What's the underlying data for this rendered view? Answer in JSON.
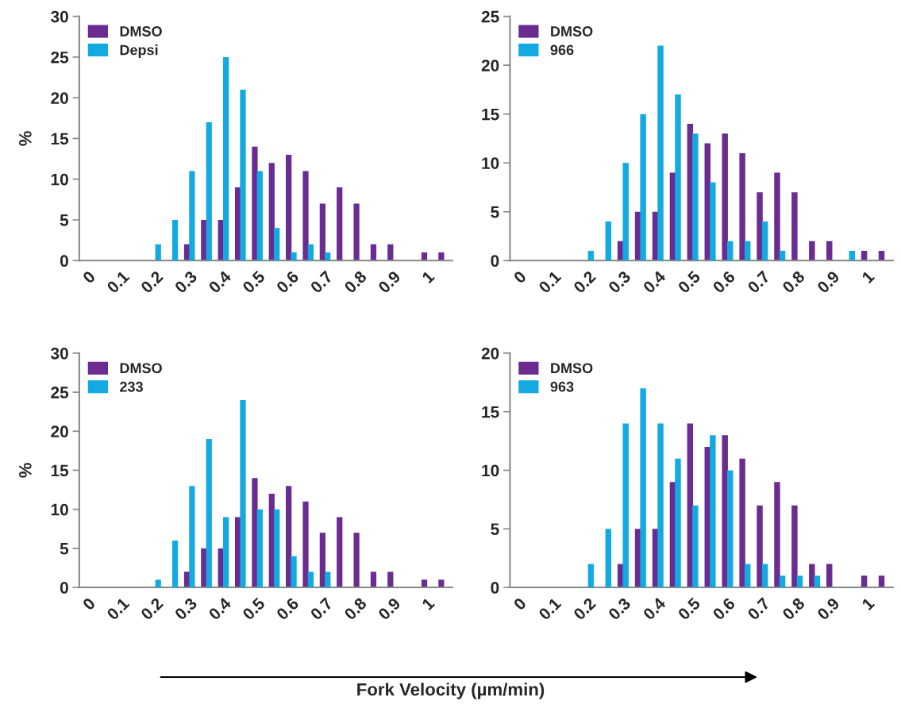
{
  "chart_data": [
    {
      "type": "bar",
      "ylabel": "%",
      "legend": "top left",
      "grid": false,
      "ylim": [
        0,
        30
      ],
      "yticks": [
        0,
        5,
        10,
        15,
        20,
        25,
        30
      ],
      "categories": [
        "0",
        null,
        "0.1",
        null,
        "0.2",
        null,
        "0.3",
        null,
        "0.4",
        null,
        "0.5",
        null,
        "0.6",
        null,
        "0.7",
        null,
        "0.8",
        null,
        "0.9",
        null,
        "1",
        null
      ],
      "series": [
        {
          "name": "DMSO",
          "color": "#6a2c91",
          "values": [
            0,
            0,
            0,
            0,
            0,
            0,
            2,
            5,
            5,
            9,
            14,
            12,
            13,
            11,
            7,
            9,
            7,
            2,
            2,
            0,
            1,
            1
          ]
        },
        {
          "name": "Depsi",
          "color": "#13aae2",
          "values": [
            0,
            0,
            0,
            0,
            2,
            5,
            11,
            17,
            25,
            21,
            11,
            4,
            1,
            2,
            1,
            0,
            0,
            0,
            0,
            0,
            0,
            0
          ]
        }
      ]
    },
    {
      "type": "bar",
      "legend": "top left",
      "grid": false,
      "ylim": [
        0,
        25
      ],
      "yticks": [
        0,
        5,
        10,
        15,
        20,
        25
      ],
      "categories": [
        "0",
        null,
        "0.1",
        null,
        "0.2",
        null,
        "0.3",
        null,
        "0.4",
        null,
        "0.5",
        null,
        "0.6",
        null,
        "0.7",
        null,
        "0.8",
        null,
        "0.9",
        null,
        "1",
        null
      ],
      "series": [
        {
          "name": "DMSO",
          "color": "#6a2c91",
          "values": [
            0,
            0,
            0,
            0,
            0,
            0,
            2,
            5,
            5,
            9,
            14,
            12,
            13,
            11,
            7,
            9,
            7,
            2,
            2,
            0,
            1,
            1
          ]
        },
        {
          "name": "966",
          "color": "#13aae2",
          "values": [
            0,
            0,
            0,
            0,
            1,
            4,
            10,
            15,
            22,
            17,
            13,
            8,
            2,
            2,
            4,
            1,
            0,
            0,
            0,
            1,
            0,
            0
          ]
        }
      ]
    },
    {
      "type": "bar",
      "ylabel": "%",
      "legend": "top left",
      "grid": false,
      "ylim": [
        0,
        30
      ],
      "yticks": [
        0,
        5,
        10,
        15,
        20,
        25,
        30
      ],
      "categories": [
        "0",
        null,
        "0.1",
        null,
        "0.2",
        null,
        "0.3",
        null,
        "0.4",
        null,
        "0.5",
        null,
        "0.6",
        null,
        "0.7",
        null,
        "0.8",
        null,
        "0.9",
        null,
        "1",
        null
      ],
      "series": [
        {
          "name": "DMSO",
          "color": "#6a2c91",
          "values": [
            0,
            0,
            0,
            0,
            0,
            0,
            2,
            5,
            5,
            9,
            14,
            12,
            13,
            11,
            7,
            9,
            7,
            2,
            2,
            0,
            1,
            1
          ]
        },
        {
          "name": "233",
          "color": "#13aae2",
          "values": [
            0,
            0,
            0,
            0,
            1,
            6,
            13,
            19,
            9,
            24,
            10,
            10,
            4,
            2,
            2,
            0,
            0,
            0,
            0,
            0,
            0,
            0
          ]
        }
      ]
    },
    {
      "type": "bar",
      "legend": "top left",
      "grid": false,
      "ylim": [
        0,
        20
      ],
      "yticks": [
        0,
        5,
        10,
        15,
        20
      ],
      "xlabel": "Fork Velocity (µm/min)",
      "categories": [
        "0",
        null,
        "0.1",
        null,
        "0.2",
        null,
        "0.3",
        null,
        "0.4",
        null,
        "0.5",
        null,
        "0.6",
        null,
        "0.7",
        null,
        "0.8",
        null,
        "0.9",
        null,
        "1",
        null
      ],
      "series": [
        {
          "name": "DMSO",
          "color": "#6a2c91",
          "values": [
            0,
            0,
            0,
            0,
            0,
            0,
            2,
            5,
            5,
            9,
            14,
            12,
            13,
            11,
            7,
            9,
            7,
            2,
            2,
            0,
            1,
            1
          ]
        },
        {
          "name": "963",
          "color": "#13aae2",
          "values": [
            0,
            0,
            0,
            0,
            2,
            5,
            14,
            17,
            14,
            11,
            7,
            13,
            10,
            2,
            2,
            1,
            1,
            1,
            0,
            0,
            0,
            0
          ]
        }
      ]
    }
  ]
}
